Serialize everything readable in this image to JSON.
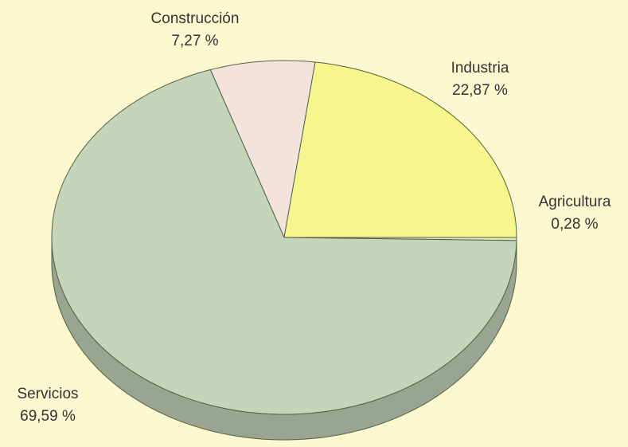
{
  "chart_data": {
    "type": "pie",
    "categories": [
      "Construcción",
      "Industria",
      "Agricultura",
      "Servicios"
    ],
    "values": [
      7.27,
      22.87,
      0.28,
      69.59
    ],
    "value_labels": [
      "7,27 %",
      "22,87 %",
      "0,28 %",
      "69,59 %"
    ],
    "colors": [
      "#f3e3da",
      "#f6f68c",
      "#dfe6bd",
      "#c6d4ba"
    ]
  }
}
